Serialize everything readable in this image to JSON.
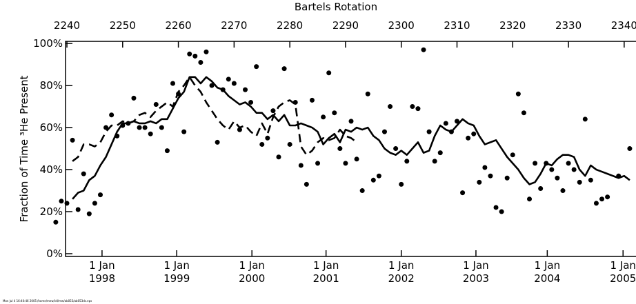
{
  "chart_data": {
    "type": "scatter-line",
    "x_title": "Bartels Rotation",
    "y_title": "Fraction of Time ³He Present",
    "footer": [
      "Mon Jul 4 16:40:46 2005",
      "/home/mew/idl/mw/ab053/ab053ds.eps"
    ],
    "xlim": [
      2239.75,
      2342
    ],
    "ylim": [
      -1.3,
      101
    ],
    "xticks": [
      2240,
      2250,
      2260,
      2270,
      2280,
      2290,
      2300,
      2310,
      2320,
      2330,
      2340
    ],
    "x2ticks": [
      {
        "value": 2246.3,
        "label": [
          "1 Jan",
          "1998"
        ]
      },
      {
        "value": 2259.7,
        "label": [
          "1 Jan",
          "1999"
        ]
      },
      {
        "value": 2273.2,
        "label": [
          "1 Jan",
          "2000"
        ]
      },
      {
        "value": 2286.5,
        "label": [
          "1 Jan",
          "2001"
        ]
      },
      {
        "value": 2300.0,
        "label": [
          "1 Jan",
          "2002"
        ]
      },
      {
        "value": 2313.4,
        "label": [
          "1 Jan",
          "2003"
        ]
      },
      {
        "value": 2326.2,
        "label": [
          "1 Jan",
          "2004"
        ]
      },
      {
        "value": 2339.8,
        "label": [
          "1 Jan",
          "2005"
        ]
      }
    ],
    "yticks": [
      {
        "value": 0,
        "label": "0%"
      },
      {
        "value": 20,
        "label": "20%"
      },
      {
        "value": 40,
        "label": "40%"
      },
      {
        "value": 60,
        "label": "60%"
      },
      {
        "value": 80,
        "label": "80%"
      },
      {
        "value": 100,
        "label": "100%"
      }
    ],
    "x": [
      2238,
      2239,
      2240,
      2241,
      2242,
      2243,
      2244,
      2245,
      2246,
      2247,
      2248,
      2249,
      2250,
      2251,
      2252,
      2253,
      2254,
      2255,
      2256,
      2257,
      2258,
      2259,
      2260,
      2261,
      2262,
      2263,
      2264,
      2265,
      2266,
      2267,
      2268,
      2269,
      2270,
      2271,
      2272,
      2273,
      2274,
      2275,
      2276,
      2277,
      2278,
      2279,
      2280,
      2281,
      2282,
      2283,
      2284,
      2285,
      2286,
      2287,
      2288,
      2289,
      2290,
      2291,
      2292,
      2293,
      2294,
      2295,
      2296,
      2297,
      2298,
      2299,
      2300,
      2301,
      2302,
      2303,
      2304,
      2305,
      2306,
      2307,
      2308,
      2309,
      2310,
      2311,
      2312,
      2313,
      2314,
      2315,
      2316,
      2317,
      2318,
      2319,
      2320,
      2321,
      2322,
      2323,
      2324,
      2325,
      2326,
      2327,
      2328,
      2329,
      2330,
      2331,
      2332,
      2333,
      2334,
      2335,
      2336,
      2337,
      2338,
      2339,
      2340,
      2341,
      2342
    ],
    "series": [
      {
        "style": "dots",
        "color": "#000000",
        "values": [
          15,
          25,
          24,
          54,
          21,
          38,
          19,
          24,
          28,
          60,
          66,
          56,
          61,
          62,
          74,
          60,
          60,
          57,
          71,
          60,
          49,
          81,
          76,
          58,
          95,
          94,
          91,
          96,
          80,
          53,
          78,
          83,
          81,
          59,
          78,
          72,
          89,
          52,
          55,
          68,
          46,
          88,
          52,
          72,
          42,
          33,
          73,
          43,
          65,
          86,
          67,
          50,
          43,
          63,
          45,
          30,
          76,
          35,
          37,
          58,
          70,
          50,
          33,
          44,
          70,
          69,
          97,
          58,
          44,
          48,
          62,
          58,
          63,
          29,
          55,
          57,
          34,
          41,
          37,
          22,
          20,
          36,
          47,
          76,
          67,
          26,
          43,
          31,
          43,
          40,
          36,
          30,
          43,
          40,
          34,
          64,
          35,
          24,
          26,
          27,
          null,
          37,
          null,
          50,
          null
        ]
      },
      {
        "style": "solid",
        "color": "#000000",
        "values": [
          null,
          null,
          null,
          26,
          29,
          30,
          35,
          37,
          42,
          46,
          52,
          58,
          62,
          62,
          63,
          62,
          62,
          63,
          62,
          64,
          64,
          69,
          74,
          77,
          84,
          84,
          81,
          84,
          82,
          79,
          78,
          75,
          73,
          71,
          72,
          70,
          67,
          67,
          64,
          66,
          63,
          66,
          61,
          61,
          62,
          61,
          60,
          58,
          52,
          55,
          57,
          53,
          59,
          58,
          60,
          59,
          60,
          56,
          54,
          50,
          48,
          47,
          49,
          47,
          50,
          53,
          48,
          49,
          56,
          61,
          59,
          58,
          61,
          64,
          62,
          61,
          56,
          52,
          53,
          54,
          50,
          46,
          43,
          40,
          36,
          33,
          34,
          38,
          43,
          42,
          45,
          47,
          47,
          46,
          40,
          37,
          42,
          40,
          39,
          38,
          37,
          36,
          37,
          35,
          null
        ]
      },
      {
        "style": "dashed",
        "color": "#000000",
        "values": [
          null,
          null,
          null,
          44,
          46,
          52,
          52,
          51,
          53,
          58,
          61,
          61,
          63,
          62,
          63,
          66,
          67,
          65,
          68,
          70,
          72,
          70,
          77,
          80,
          84,
          80,
          77,
          72,
          68,
          64,
          61,
          59,
          63,
          60,
          61,
          58,
          56,
          62,
          57,
          65,
          70,
          72,
          73,
          71,
          51,
          47,
          49,
          53,
          55,
          54,
          55,
          59,
          56,
          55,
          53,
          null,
          null,
          null,
          null,
          null,
          null,
          null,
          null,
          null,
          null,
          null,
          null,
          null,
          null,
          null,
          null,
          null,
          null,
          null,
          null,
          null,
          null,
          null,
          null,
          null,
          null,
          null,
          null,
          null,
          null,
          null,
          null,
          null,
          null,
          null,
          null,
          null,
          null,
          null,
          null,
          null,
          null,
          null,
          null,
          null,
          null,
          null,
          null,
          null,
          null
        ]
      }
    ]
  }
}
